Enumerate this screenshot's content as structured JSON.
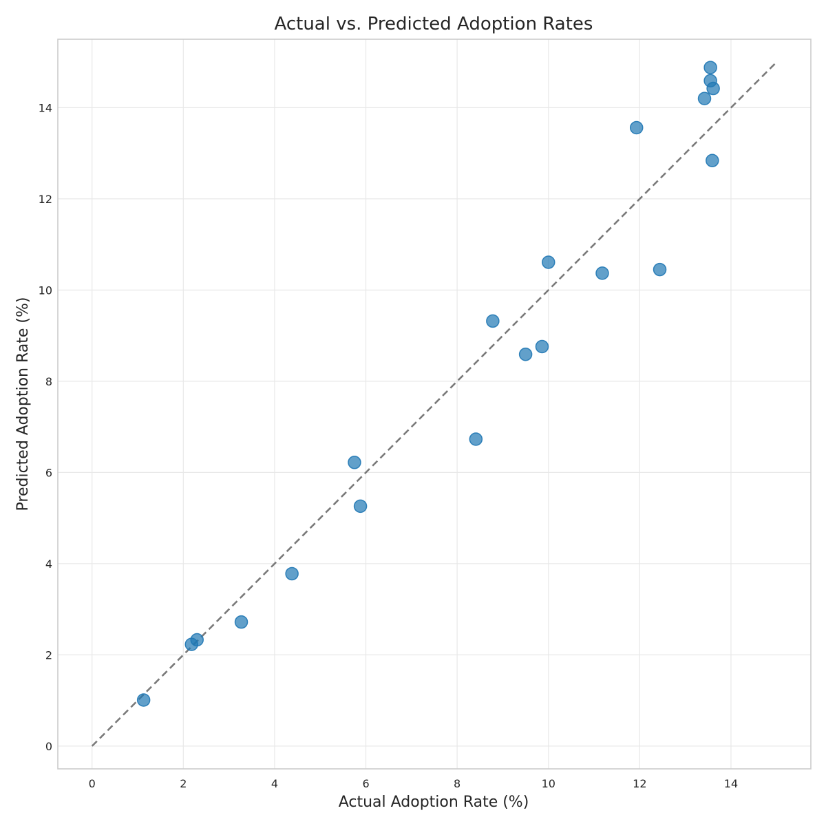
{
  "chart_data": {
    "type": "scatter",
    "title": "Actual vs. Predicted Adoption Rates",
    "xlabel": "Actual Adoption Rate (%)",
    "ylabel": "Predicted Adoption Rate (%)",
    "xlim": [
      -0.75,
      15.75
    ],
    "ylim": [
      -0.5,
      15.5
    ],
    "xticks": [
      0,
      2,
      4,
      6,
      8,
      10,
      12,
      14
    ],
    "yticks": [
      0,
      2,
      4,
      6,
      8,
      10,
      12,
      14
    ],
    "grid": true,
    "reference_line": {
      "style": "dashed",
      "color": "#7a7a7a",
      "from": [
        0,
        0
      ],
      "to": [
        15,
        15
      ]
    },
    "point_color": "#1f77b4",
    "points": [
      {
        "x": 1.13,
        "y": 1.01
      },
      {
        "x": 2.18,
        "y": 2.23
      },
      {
        "x": 2.3,
        "y": 2.33
      },
      {
        "x": 3.27,
        "y": 2.72
      },
      {
        "x": 4.38,
        "y": 3.78
      },
      {
        "x": 5.75,
        "y": 6.22
      },
      {
        "x": 5.88,
        "y": 5.26
      },
      {
        "x": 8.41,
        "y": 6.73
      },
      {
        "x": 8.78,
        "y": 9.32
      },
      {
        "x": 9.5,
        "y": 8.59
      },
      {
        "x": 9.86,
        "y": 8.76
      },
      {
        "x": 10.0,
        "y": 10.61
      },
      {
        "x": 11.18,
        "y": 10.37
      },
      {
        "x": 11.93,
        "y": 13.56
      },
      {
        "x": 12.44,
        "y": 10.45
      },
      {
        "x": 13.42,
        "y": 14.2
      },
      {
        "x": 13.55,
        "y": 14.88
      },
      {
        "x": 13.55,
        "y": 14.59
      },
      {
        "x": 13.61,
        "y": 14.42
      },
      {
        "x": 13.59,
        "y": 12.84
      }
    ]
  }
}
